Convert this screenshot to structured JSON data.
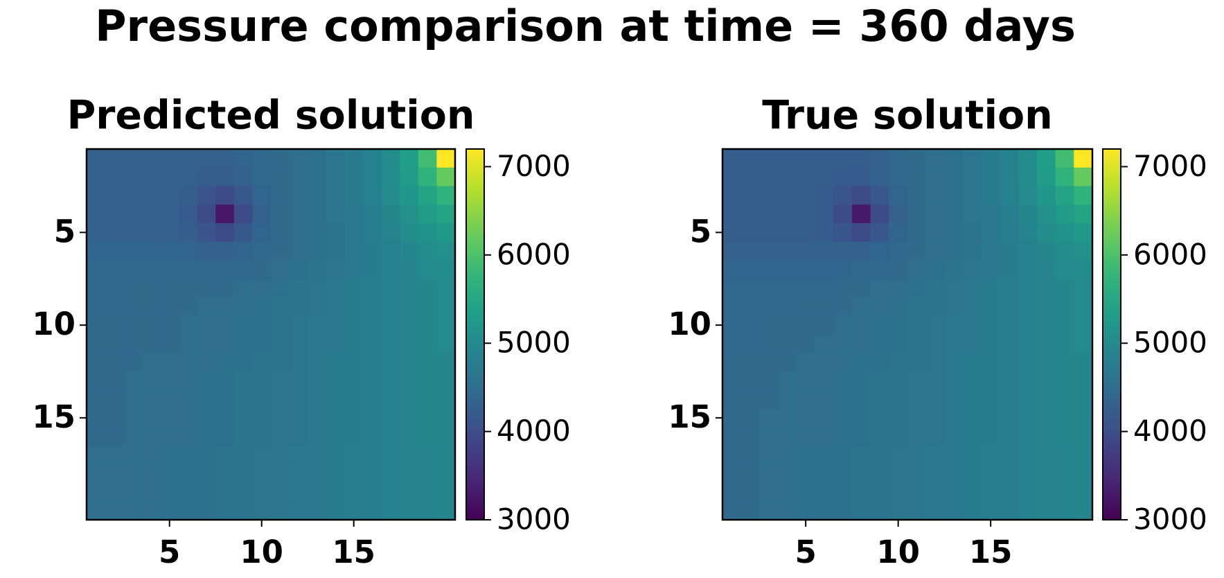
{
  "title": "Pressure comparison at time = 360 days",
  "chart_data": [
    {
      "type": "heatmap",
      "title": "Predicted solution",
      "colormap": "viridis",
      "xlim": [
        0.5,
        20.5
      ],
      "xticks": [
        5,
        10,
        15
      ],
      "ylim": [
        20.5,
        0.5
      ],
      "yticks": [
        5,
        10,
        15
      ],
      "clim": [
        3000,
        7200
      ],
      "cticks": [
        3000,
        4000,
        5000,
        6000,
        7000
      ],
      "values": [
        [
          4300,
          4300,
          4300,
          4300,
          4300,
          4300,
          4300,
          4300,
          4350,
          4400,
          4450,
          4500,
          4550,
          4650,
          4750,
          4850,
          5050,
          5350,
          5900,
          7200
        ],
        [
          4300,
          4300,
          4300,
          4300,
          4300,
          4300,
          4250,
          4250,
          4300,
          4400,
          4450,
          4500,
          4550,
          4650,
          4750,
          4850,
          5050,
          5300,
          5700,
          6200
        ],
        [
          4300,
          4300,
          4300,
          4300,
          4300,
          4250,
          4100,
          3950,
          4150,
          4350,
          4450,
          4500,
          4550,
          4650,
          4750,
          4850,
          5000,
          5200,
          5450,
          5700
        ],
        [
          4300,
          4300,
          4300,
          4300,
          4300,
          4200,
          3950,
          3250,
          3950,
          4300,
          4450,
          4500,
          4550,
          4650,
          4700,
          4800,
          4950,
          5100,
          5300,
          5450
        ],
        [
          4300,
          4300,
          4300,
          4300,
          4300,
          4250,
          4100,
          3950,
          4150,
          4350,
          4450,
          4500,
          4550,
          4600,
          4700,
          4800,
          4900,
          5050,
          5150,
          5250
        ],
        [
          4350,
          4350,
          4350,
          4350,
          4350,
          4350,
          4300,
          4300,
          4350,
          4400,
          4450,
          4500,
          4550,
          4600,
          4700,
          4750,
          4850,
          4950,
          5050,
          5100
        ],
        [
          4400,
          4400,
          4400,
          4400,
          4400,
          4400,
          4400,
          4400,
          4400,
          4450,
          4500,
          4550,
          4600,
          4650,
          4700,
          4750,
          4850,
          4900,
          5000,
          5050
        ],
        [
          4400,
          4400,
          4450,
          4450,
          4450,
          4450,
          4450,
          4450,
          4500,
          4500,
          4550,
          4600,
          4650,
          4700,
          4750,
          4800,
          4850,
          4900,
          4950,
          5000
        ],
        [
          4400,
          4400,
          4450,
          4450,
          4450,
          4450,
          4500,
          4500,
          4500,
          4550,
          4600,
          4600,
          4650,
          4700,
          4750,
          4800,
          4850,
          4900,
          4950,
          5000
        ],
        [
          4450,
          4450,
          4450,
          4450,
          4450,
          4500,
          4500,
          4500,
          4550,
          4550,
          4600,
          4650,
          4700,
          4700,
          4750,
          4800,
          4850,
          4900,
          4950,
          5000
        ],
        [
          4450,
          4450,
          4450,
          4450,
          4450,
          4500,
          4500,
          4500,
          4550,
          4550,
          4600,
          4650,
          4700,
          4700,
          4750,
          4800,
          4850,
          4900,
          4950,
          5000
        ],
        [
          4450,
          4450,
          4450,
          4500,
          4500,
          4500,
          4500,
          4550,
          4550,
          4600,
          4600,
          4650,
          4700,
          4750,
          4750,
          4800,
          4850,
          4900,
          4950,
          4950
        ],
        [
          4450,
          4450,
          4500,
          4500,
          4500,
          4500,
          4550,
          4550,
          4600,
          4600,
          4650,
          4650,
          4700,
          4750,
          4750,
          4800,
          4850,
          4900,
          4950,
          4950
        ],
        [
          4450,
          4450,
          4500,
          4500,
          4500,
          4500,
          4550,
          4550,
          4600,
          4600,
          4650,
          4650,
          4700,
          4750,
          4750,
          4800,
          4850,
          4900,
          4950,
          4950
        ],
        [
          4450,
          4450,
          4500,
          4500,
          4500,
          4500,
          4550,
          4550,
          4600,
          4600,
          4650,
          4650,
          4700,
          4750,
          4750,
          4800,
          4850,
          4900,
          4950,
          4950
        ],
        [
          4450,
          4450,
          4500,
          4500,
          4500,
          4500,
          4550,
          4550,
          4600,
          4600,
          4650,
          4650,
          4700,
          4750,
          4750,
          4800,
          4850,
          4900,
          4950,
          4950
        ],
        [
          4500,
          4500,
          4500,
          4500,
          4550,
          4550,
          4550,
          4600,
          4600,
          4650,
          4650,
          4700,
          4700,
          4750,
          4800,
          4800,
          4850,
          4900,
          4900,
          4950
        ],
        [
          4500,
          4500,
          4500,
          4500,
          4550,
          4550,
          4550,
          4600,
          4600,
          4650,
          4650,
          4700,
          4700,
          4750,
          4800,
          4800,
          4850,
          4900,
          4900,
          4950
        ],
        [
          4500,
          4500,
          4500,
          4500,
          4550,
          4550,
          4550,
          4600,
          4600,
          4650,
          4650,
          4700,
          4700,
          4750,
          4800,
          4800,
          4850,
          4900,
          4900,
          4950
        ],
        [
          4500,
          4500,
          4500,
          4500,
          4550,
          4550,
          4550,
          4600,
          4600,
          4650,
          4650,
          4700,
          4700,
          4750,
          4800,
          4800,
          4850,
          4900,
          4900,
          4950
        ]
      ]
    },
    {
      "type": "heatmap",
      "title": "True solution",
      "colormap": "viridis",
      "xlim": [
        0.5,
        20.5
      ],
      "xticks": [
        5,
        10,
        15
      ],
      "ylim": [
        20.5,
        0.5
      ],
      "yticks": [
        5,
        10,
        15
      ],
      "clim": [
        3000,
        7200
      ],
      "cticks": [
        3000,
        4000,
        5000,
        6000,
        7000
      ],
      "values": [
        [
          4250,
          4250,
          4250,
          4250,
          4250,
          4250,
          4250,
          4250,
          4300,
          4400,
          4450,
          4500,
          4550,
          4650,
          4750,
          4850,
          5050,
          5350,
          5900,
          7200
        ],
        [
          4250,
          4250,
          4250,
          4250,
          4250,
          4250,
          4200,
          4200,
          4300,
          4400,
          4450,
          4500,
          4550,
          4650,
          4750,
          4850,
          5050,
          5300,
          5700,
          6200
        ],
        [
          4250,
          4250,
          4250,
          4250,
          4250,
          4200,
          4100,
          3950,
          4150,
          4350,
          4450,
          4500,
          4550,
          4650,
          4750,
          4850,
          5000,
          5200,
          5450,
          5700
        ],
        [
          4250,
          4250,
          4250,
          4250,
          4250,
          4200,
          3950,
          3300,
          3950,
          4300,
          4450,
          4500,
          4550,
          4650,
          4700,
          4800,
          4950,
          5100,
          5300,
          5450
        ],
        [
          4250,
          4250,
          4250,
          4250,
          4250,
          4200,
          4100,
          3950,
          4150,
          4350,
          4450,
          4500,
          4550,
          4600,
          4700,
          4800,
          4900,
          5050,
          5150,
          5250
        ],
        [
          4300,
          4300,
          4300,
          4300,
          4300,
          4300,
          4300,
          4300,
          4350,
          4400,
          4450,
          4500,
          4550,
          4600,
          4700,
          4750,
          4850,
          4950,
          5050,
          5100
        ],
        [
          4350,
          4350,
          4350,
          4350,
          4350,
          4350,
          4350,
          4400,
          4400,
          4450,
          4500,
          4550,
          4600,
          4650,
          4700,
          4750,
          4850,
          4900,
          5000,
          5050
        ],
        [
          4400,
          4400,
          4400,
          4400,
          4400,
          4400,
          4450,
          4450,
          4500,
          4500,
          4550,
          4600,
          4650,
          4700,
          4750,
          4800,
          4850,
          4900,
          4950,
          5000
        ],
        [
          4400,
          4400,
          4400,
          4400,
          4450,
          4450,
          4450,
          4500,
          4500,
          4550,
          4600,
          4600,
          4650,
          4700,
          4750,
          4800,
          4850,
          4900,
          4950,
          5000
        ],
        [
          4400,
          4400,
          4450,
          4450,
          4450,
          4450,
          4500,
          4500,
          4550,
          4550,
          4600,
          4650,
          4700,
          4700,
          4750,
          4800,
          4850,
          4900,
          4950,
          5000
        ],
        [
          4400,
          4400,
          4450,
          4450,
          4450,
          4500,
          4500,
          4500,
          4550,
          4550,
          4600,
          4650,
          4700,
          4700,
          4750,
          4800,
          4850,
          4900,
          4950,
          5000
        ],
        [
          4450,
          4450,
          4450,
          4450,
          4500,
          4500,
          4500,
          4550,
          4550,
          4600,
          4600,
          4650,
          4700,
          4750,
          4750,
          4800,
          4850,
          4900,
          4950,
          4950
        ],
        [
          4450,
          4450,
          4450,
          4500,
          4500,
          4500,
          4550,
          4550,
          4600,
          4600,
          4650,
          4650,
          4700,
          4750,
          4750,
          4800,
          4850,
          4900,
          4950,
          4950
        ],
        [
          4450,
          4450,
          4450,
          4500,
          4500,
          4500,
          4550,
          4550,
          4600,
          4600,
          4650,
          4650,
          4700,
          4750,
          4750,
          4800,
          4850,
          4900,
          4950,
          4950
        ],
        [
          4450,
          4450,
          4500,
          4500,
          4500,
          4500,
          4550,
          4550,
          4600,
          4600,
          4650,
          4650,
          4700,
          4750,
          4750,
          4800,
          4850,
          4900,
          4950,
          4950
        ],
        [
          4450,
          4450,
          4500,
          4500,
          4500,
          4500,
          4550,
          4550,
          4600,
          4600,
          4650,
          4650,
          4700,
          4750,
          4750,
          4800,
          4850,
          4900,
          4950,
          4950
        ],
        [
          4450,
          4450,
          4500,
          4500,
          4550,
          4550,
          4550,
          4600,
          4600,
          4650,
          4650,
          4700,
          4700,
          4750,
          4800,
          4800,
          4850,
          4900,
          4900,
          4950
        ],
        [
          4450,
          4450,
          4500,
          4500,
          4550,
          4550,
          4550,
          4600,
          4600,
          4650,
          4650,
          4700,
          4700,
          4750,
          4800,
          4800,
          4850,
          4900,
          4900,
          4950
        ],
        [
          4450,
          4450,
          4500,
          4500,
          4550,
          4550,
          4550,
          4600,
          4600,
          4650,
          4650,
          4700,
          4700,
          4750,
          4800,
          4800,
          4850,
          4900,
          4900,
          4950
        ],
        [
          4450,
          4450,
          4500,
          4500,
          4550,
          4550,
          4550,
          4600,
          4600,
          4650,
          4650,
          4700,
          4700,
          4750,
          4800,
          4800,
          4850,
          4900,
          4900,
          4950
        ]
      ]
    }
  ]
}
